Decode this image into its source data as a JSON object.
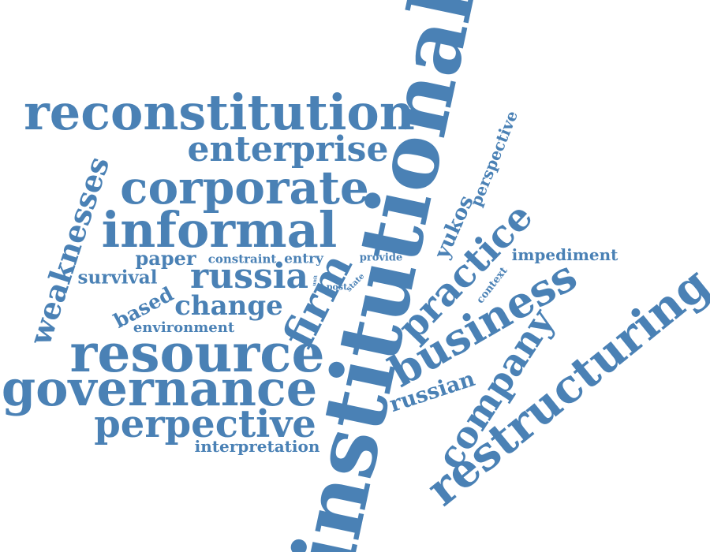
{
  "color": "#4a81b5",
  "words": [
    {
      "id": "institutional",
      "text": "institutional"
    },
    {
      "id": "reconstitution",
      "text": "reconstitution"
    },
    {
      "id": "enterprise",
      "text": "enterprise"
    },
    {
      "id": "corporate",
      "text": "corporate"
    },
    {
      "id": "informal",
      "text": "informal"
    },
    {
      "id": "weaknesses",
      "text": "weaknesses"
    },
    {
      "id": "paper",
      "text": "paper"
    },
    {
      "id": "constraint",
      "text": "constraint"
    },
    {
      "id": "entry",
      "text": "entry"
    },
    {
      "id": "provide",
      "text": "provide"
    },
    {
      "id": "survival",
      "text": "survival"
    },
    {
      "id": "russia",
      "text": "russia"
    },
    {
      "id": "unit",
      "text": "unit"
    },
    {
      "id": "post",
      "text": "post"
    },
    {
      "id": "state",
      "text": "state"
    },
    {
      "id": "based",
      "text": "based"
    },
    {
      "id": "change",
      "text": "change"
    },
    {
      "id": "environment",
      "text": "environment"
    },
    {
      "id": "firm",
      "text": "firm"
    },
    {
      "id": "resource",
      "text": "resource"
    },
    {
      "id": "governance",
      "text": "governance"
    },
    {
      "id": "perpective",
      "text": "perpective"
    },
    {
      "id": "interpretation",
      "text": "interpretation"
    },
    {
      "id": "perspective",
      "text": "perspective"
    },
    {
      "id": "yukos",
      "text": "yukos"
    },
    {
      "id": "practice",
      "text": "practice"
    },
    {
      "id": "context",
      "text": "context"
    },
    {
      "id": "impediment",
      "text": "impediment"
    },
    {
      "id": "business",
      "text": "business"
    },
    {
      "id": "russian",
      "text": "russian"
    },
    {
      "id": "company",
      "text": "company"
    },
    {
      "id": "restructuring",
      "text": "restructuring"
    }
  ]
}
